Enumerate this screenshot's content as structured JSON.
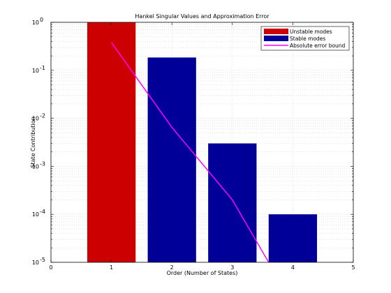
{
  "chart_data": {
    "type": "bar",
    "title": "Hankel Singular Values and Approximation Error",
    "xlabel": "Order (Number of States)",
    "ylabel": "State Contribution",
    "xlim": [
      0,
      5
    ],
    "ylim": [
      1e-05,
      1
    ],
    "yscale": "log",
    "grid": true,
    "x_ticks": [
      0,
      1,
      2,
      3,
      4,
      5
    ],
    "x_tick_labels": [
      "0",
      "1",
      "2",
      "3",
      "4",
      "5"
    ],
    "y_ticks": [
      {
        "value": 1e-05,
        "base": "10",
        "exp": "-5"
      },
      {
        "value": 0.0001,
        "base": "10",
        "exp": "-4"
      },
      {
        "value": 0.001,
        "base": "10",
        "exp": "-3"
      },
      {
        "value": 0.01,
        "base": "10",
        "exp": "-2"
      },
      {
        "value": 0.1,
        "base": "10",
        "exp": "-1"
      },
      {
        "value": 1,
        "base": "10",
        "exp": "0"
      }
    ],
    "legend_position": "top-right",
    "series": [
      {
        "name": "Unstable modes",
        "kind": "bar",
        "color": "#cc0000",
        "x": [
          1
        ],
        "values": [
          1.0
        ]
      },
      {
        "name": "Stable modes",
        "kind": "bar",
        "color": "#000099",
        "x": [
          2,
          3,
          4
        ],
        "values": [
          0.185,
          0.003,
          0.0001
        ]
      },
      {
        "name": "Absolute error bound",
        "kind": "line",
        "color": "#ff00ff",
        "x": [
          1,
          2,
          3,
          3.6
        ],
        "values": [
          0.38,
          0.0065,
          0.0002,
          1e-05
        ]
      }
    ]
  }
}
